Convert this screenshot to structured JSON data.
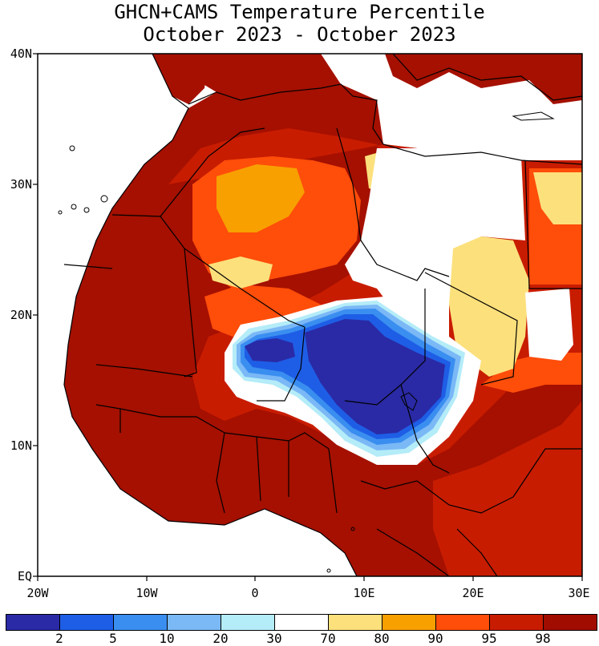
{
  "title": {
    "line1": "GHCN+CAMS Temperature Percentile",
    "line2": "October 2023 - October 2023"
  },
  "axes": {
    "y_labels": [
      "40N",
      "30N",
      "20N",
      "10N",
      "EQ"
    ],
    "x_labels": [
      "20W",
      "10W",
      "0",
      "10E",
      "20E",
      "30E"
    ]
  },
  "legend": {
    "colors": [
      "#2a2aa6",
      "#1e5ee6",
      "#3a8ef0",
      "#7ab8f6",
      "#b4ecf8",
      "#ffffff",
      "#fce07c",
      "#f8a000",
      "#ff4d0a",
      "#c81c00",
      "#a00c00"
    ],
    "labels": [
      "2",
      "5",
      "10",
      "20",
      "30",
      "70",
      "80",
      "90",
      "95",
      "98"
    ]
  },
  "map_colors": {
    "p98": "#a51000",
    "p95": "#c81c00",
    "p90": "#ff4d0a",
    "p80": "#f8a000",
    "p70": "#fce07c",
    "p50": "#ffffff",
    "p30": "#b4ecf8",
    "p20": "#7ab8f6",
    "p10": "#3a8ef0",
    "p5": "#1e5ee6",
    "p2": "#2a2aa6"
  }
}
